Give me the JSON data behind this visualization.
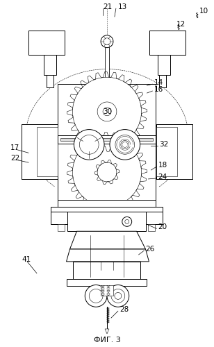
{
  "title": "ФИГ. 3",
  "bg_color": "#ffffff",
  "fig_width": 3.08,
  "fig_height": 5.0,
  "dpi": 100,
  "labels": [
    [
      "10",
      288,
      14
    ],
    [
      "12",
      255,
      33
    ],
    [
      "13",
      170,
      8
    ],
    [
      "14",
      222,
      118
    ],
    [
      "16",
      222,
      128
    ],
    [
      "17",
      14,
      213
    ],
    [
      "18",
      228,
      238
    ],
    [
      "20",
      228,
      328
    ],
    [
      "21",
      148,
      8
    ],
    [
      "22",
      14,
      228
    ],
    [
      "24",
      228,
      255
    ],
    [
      "26",
      210,
      360
    ],
    [
      "28",
      172,
      448
    ],
    [
      "30",
      148,
      160
    ],
    [
      "32",
      230,
      208
    ],
    [
      "41",
      30,
      375
    ]
  ]
}
